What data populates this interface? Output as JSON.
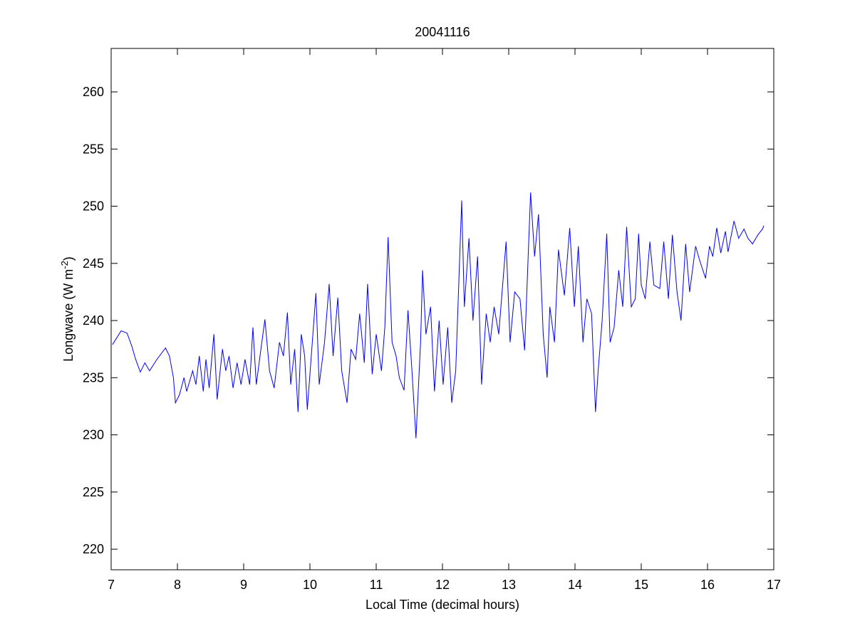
{
  "chart_data": {
    "type": "line",
    "title": "20041116",
    "xlabel": "Local Time (decimal hours)",
    "ylabel_main": "Longwave (W m",
    "ylabel_sup": "-2",
    "ylabel_end": ")",
    "xlim": [
      7,
      17
    ],
    "ylim": [
      218.2,
      263.8
    ],
    "xticks": [
      "7",
      "8",
      "9",
      "10",
      "11",
      "12",
      "13",
      "14",
      "15",
      "16",
      "17"
    ],
    "yticks": [
      "220",
      "225",
      "230",
      "235",
      "240",
      "245",
      "250",
      "255",
      "260"
    ],
    "grid": false,
    "series": [
      {
        "name": "Longwave",
        "color": "#0000ff",
        "x": [
          7.02,
          7.15,
          7.24,
          7.31,
          7.37,
          7.44,
          7.51,
          7.58,
          7.69,
          7.82,
          7.88,
          7.94,
          7.97,
          8.03,
          8.1,
          8.14,
          8.23,
          8.28,
          8.33,
          8.39,
          8.43,
          8.48,
          8.55,
          8.6,
          8.68,
          8.73,
          8.78,
          8.84,
          8.9,
          8.96,
          9.02,
          9.09,
          9.14,
          9.19,
          9.26,
          9.32,
          9.39,
          9.46,
          9.54,
          9.6,
          9.66,
          9.71,
          9.77,
          9.82,
          9.87,
          9.92,
          9.96,
          10.02,
          10.09,
          10.14,
          10.22,
          10.29,
          10.35,
          10.42,
          10.48,
          10.56,
          10.62,
          10.69,
          10.75,
          10.82,
          10.87,
          10.94,
          11.0,
          11.08,
          11.13,
          11.18,
          11.24,
          11.3,
          11.35,
          11.42,
          11.48,
          11.54,
          11.6,
          11.67,
          11.7,
          11.75,
          11.82,
          11.88,
          11.95,
          12.01,
          12.08,
          12.14,
          12.2,
          12.29,
          12.33,
          12.4,
          12.46,
          12.53,
          12.59,
          12.66,
          12.72,
          12.78,
          12.85,
          12.96,
          13.02,
          13.09,
          13.17,
          13.24,
          13.33,
          13.39,
          13.45,
          13.52,
          13.58,
          13.62,
          13.69,
          13.75,
          13.84,
          13.92,
          13.99,
          14.05,
          14.12,
          14.18,
          14.25,
          14.31,
          14.35,
          14.41,
          14.48,
          14.53,
          14.59,
          14.66,
          14.72,
          14.78,
          14.85,
          14.91,
          14.96,
          15.0,
          15.06,
          15.13,
          15.19,
          15.28,
          15.34,
          15.41,
          15.47,
          15.54,
          15.6,
          15.67,
          15.73,
          15.82,
          15.88,
          15.97,
          16.03,
          16.08,
          16.14,
          16.2,
          16.27,
          16.31,
          16.4,
          16.47,
          16.55,
          16.61,
          16.68,
          16.76,
          16.83,
          16.85
        ],
        "y": [
          237.9,
          239.1,
          238.9,
          237.8,
          236.6,
          235.5,
          236.3,
          235.6,
          236.6,
          237.6,
          236.9,
          235.0,
          232.8,
          233.5,
          235.0,
          233.8,
          235.6,
          234.4,
          236.9,
          233.8,
          236.6,
          234.1,
          238.8,
          233.1,
          237.5,
          235.6,
          236.9,
          234.1,
          236.3,
          234.4,
          236.6,
          234.4,
          239.4,
          234.4,
          237.5,
          240.1,
          235.6,
          234.1,
          238.1,
          236.9,
          240.7,
          234.4,
          237.5,
          232.0,
          238.8,
          236.9,
          232.2,
          236.9,
          242.4,
          234.4,
          238.1,
          243.2,
          236.9,
          242.0,
          235.6,
          232.8,
          237.5,
          236.6,
          240.6,
          236.3,
          243.2,
          235.3,
          238.8,
          235.6,
          239.4,
          247.3,
          238.1,
          236.9,
          235.0,
          233.9,
          240.9,
          235.6,
          229.7,
          238.1,
          244.4,
          238.8,
          241.2,
          233.8,
          240.0,
          234.4,
          239.4,
          232.8,
          235.6,
          250.5,
          241.2,
          247.2,
          240.0,
          245.6,
          234.4,
          240.6,
          238.1,
          241.2,
          238.8,
          246.9,
          238.1,
          242.5,
          241.9,
          237.4,
          251.2,
          245.6,
          249.3,
          238.8,
          235.0,
          241.2,
          238.1,
          246.2,
          242.2,
          248.1,
          241.2,
          246.5,
          238.1,
          241.9,
          240.6,
          232.0,
          235.6,
          240.0,
          247.6,
          238.1,
          239.4,
          244.4,
          241.2,
          248.2,
          241.2,
          241.9,
          247.6,
          243.1,
          241.9,
          246.9,
          243.1,
          242.8,
          246.9,
          241.9,
          247.5,
          242.5,
          240.0,
          246.7,
          242.5,
          246.5,
          245.3,
          243.7,
          246.5,
          245.6,
          248.1,
          245.9,
          247.8,
          246.0,
          248.7,
          247.2,
          248.0,
          247.2,
          246.7,
          247.5,
          248.0,
          248.3
        ]
      }
    ]
  }
}
